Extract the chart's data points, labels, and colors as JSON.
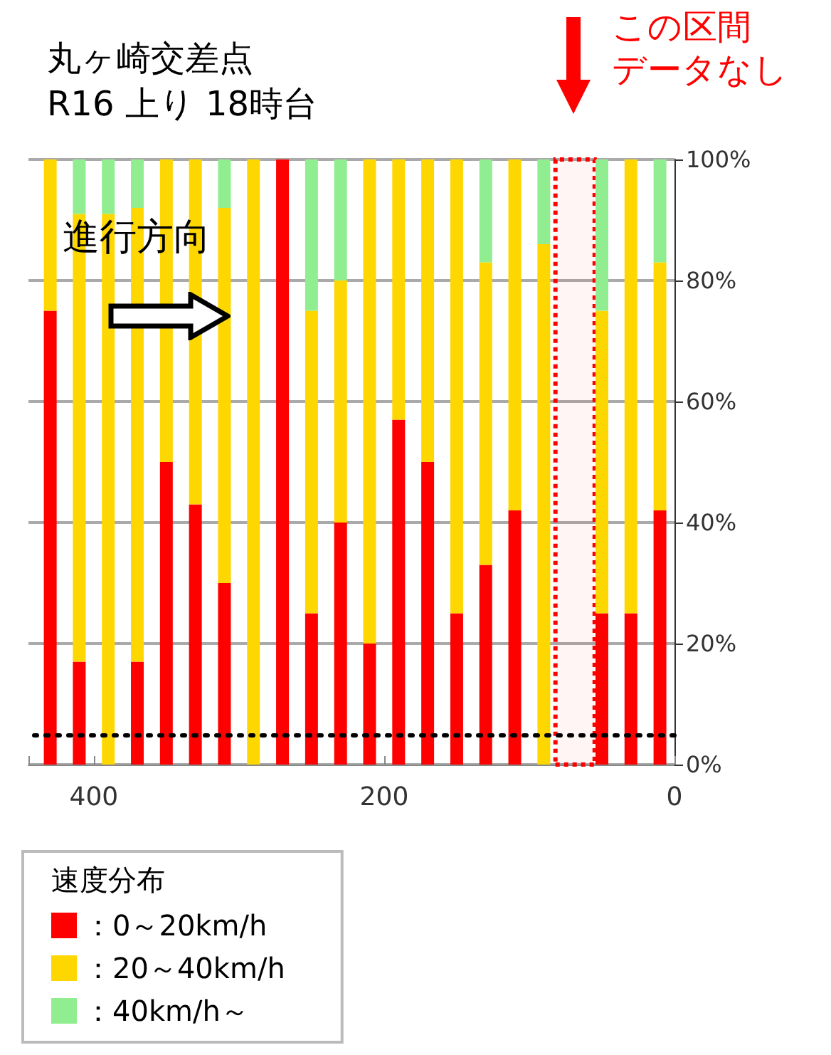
{
  "chart_data": {
    "type": "bar",
    "stacked": true,
    "title": "丸ヶ崎交差点",
    "subtitle": "R16 上り 18時台",
    "legend_title": "速度分布",
    "legend": "bottom left",
    "x": [
      430,
      410,
      390,
      370,
      350,
      330,
      310,
      290,
      270,
      250,
      230,
      210,
      190,
      170,
      150,
      130,
      110,
      90,
      70,
      50,
      30,
      10
    ],
    "xlim": [
      445,
      0
    ],
    "xticks": [
      400,
      200,
      0
    ],
    "ylim": [
      0,
      100
    ],
    "yticks": [
      {
        "value": 0,
        "label": "0%"
      },
      {
        "value": 20,
        "label": "20%"
      },
      {
        "value": 40,
        "label": "40%"
      },
      {
        "value": 60,
        "label": "60%"
      },
      {
        "value": 80,
        "label": "80%"
      },
      {
        "value": 100,
        "label": "100%"
      }
    ],
    "grid": "y",
    "series": [
      {
        "name": "：0～20km/h",
        "color": "#ff0000",
        "values": [
          75,
          17,
          0,
          17,
          50,
          43,
          30,
          0,
          100,
          25,
          40,
          20,
          57,
          50,
          25,
          33,
          42,
          0,
          null,
          25,
          25,
          42
        ]
      },
      {
        "name": "：20～40km/h",
        "color": "#ffd700",
        "values": [
          25,
          74,
          91,
          75,
          50,
          57,
          62,
          100,
          0,
          50,
          40,
          80,
          43,
          50,
          75,
          50,
          58,
          86,
          null,
          50,
          75,
          41
        ]
      },
      {
        "name": "：40km/h～",
        "color": "#90ee90",
        "values": [
          0,
          9,
          9,
          8,
          0,
          0,
          8,
          0,
          0,
          25,
          20,
          0,
          0,
          0,
          0,
          17,
          0,
          14,
          null,
          25,
          0,
          17
        ]
      }
    ],
    "ref_lines": [
      {
        "axis": "y",
        "value": 5,
        "color": "#000000",
        "line_style": "dotted"
      }
    ],
    "bands": [
      {
        "axis": "x",
        "from": 82,
        "to": 55,
        "label": "この区間データなし",
        "color": "#ff0000"
      }
    ],
    "annotations": [
      "進行方向"
    ]
  }
}
